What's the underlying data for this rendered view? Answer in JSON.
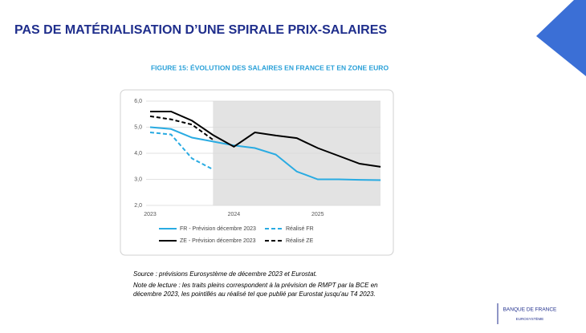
{
  "header": {
    "title": "PAS DE MATÉRIALISATION D’UNE SPIRALE PRIX-SALAIRES"
  },
  "chart_data": {
    "type": "line",
    "title": "FIGURE 15: ÉVOLUTION DES SALAIRES EN FRANCE ET EN ZONE EURO",
    "categories": [
      "2023",
      null,
      null,
      null,
      "2024",
      null,
      null,
      null,
      "2025",
      null,
      null,
      null
    ],
    "series": [
      {
        "name": "FR - Prévision décembre 2023",
        "color": "#29abe2",
        "style": "solid",
        "values": [
          5.0,
          4.93,
          4.6,
          4.45,
          4.3,
          4.2,
          3.95,
          3.3,
          3.0,
          3.0,
          2.98,
          2.97
        ]
      },
      {
        "name": "Réalisé FR",
        "color": "#29abe2",
        "style": "dashed",
        "values": [
          4.8,
          4.72,
          3.8,
          3.38,
          null,
          null,
          null,
          null,
          null,
          null,
          null,
          null
        ]
      },
      {
        "name": "ZE - Prévision décembre 2023",
        "color": "#000000",
        "style": "solid",
        "values": [
          5.6,
          5.6,
          5.25,
          4.7,
          4.25,
          4.8,
          4.68,
          4.58,
          4.2,
          3.9,
          3.6,
          3.48
        ]
      },
      {
        "name": "Réalisé ZE",
        "color": "#000000",
        "style": "dashed",
        "values": [
          5.42,
          5.3,
          5.1,
          4.52,
          null,
          null,
          null,
          null,
          null,
          null,
          null,
          null
        ]
      }
    ],
    "ylim": [
      2.0,
      6.0
    ],
    "yticks": [
      {
        "value": 2.0,
        "label": "2,0"
      },
      {
        "value": 3.0,
        "label": "3,0"
      },
      {
        "value": 4.0,
        "label": "4,0"
      },
      {
        "value": 5.0,
        "label": "5,0"
      },
      {
        "value": 6.0,
        "label": "6,0"
      }
    ],
    "grid": true
  },
  "footer": {
    "source": "Source : prévisions Eurosystème de décembre 2023 et Eurostat.",
    "note": [
      "Note de lecture : les traits pleins correspondent à la prévision de RMPT par la BCE en",
      "décembre 2023, les pointillés au réalisé tel que publié par Eurostat jusqu'au T4 2023."
    ],
    "logo": "BANQUE DE FRANCE",
    "logo_sub": "EUROSYSTÈME"
  }
}
